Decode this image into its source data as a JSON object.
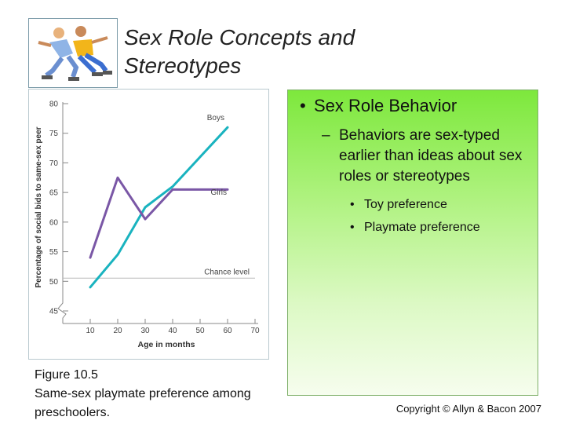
{
  "title": "Sex Role Concepts and Stereotypes",
  "bullets": {
    "level1": "Sex Role Behavior",
    "level2_dash": "–",
    "level2": "Behaviors are sex-typed earlier than ideas about sex roles or stereotypes",
    "level3": [
      "Toy preference",
      "Playmate preference"
    ]
  },
  "caption": [
    "Figure 10.5",
    "Same-sex playmate preference among",
    "preschoolers."
  ],
  "copyright": "Copyright © Allyn & Bacon 2007",
  "logo": {
    "icon": "children-skating-icon"
  },
  "chart_data": {
    "type": "line",
    "xlabel": "Age in months",
    "ylabel": "Percentage of social bids to same-sex peer",
    "x_ticks": [
      10,
      20,
      30,
      40,
      50,
      60,
      70
    ],
    "y_ticks": [
      45,
      50,
      55,
      60,
      65,
      70,
      75,
      80
    ],
    "xlim": [
      10,
      70
    ],
    "ylim": [
      45,
      80
    ],
    "axis_break": true,
    "chance_level": {
      "label": "Chance level",
      "y": 50
    },
    "series": [
      {
        "name": "Boys",
        "color": "#19b3bf",
        "x": [
          10,
          20,
          30,
          40,
          50,
          60
        ],
        "y": [
          49,
          54.5,
          62.5,
          66,
          71,
          76
        ]
      },
      {
        "name": "Girls",
        "color": "#7a57a6",
        "x": [
          10,
          20,
          30,
          40,
          50,
          60
        ],
        "y": [
          54,
          67.5,
          60.5,
          65.5,
          65.5,
          65.5
        ]
      }
    ]
  }
}
